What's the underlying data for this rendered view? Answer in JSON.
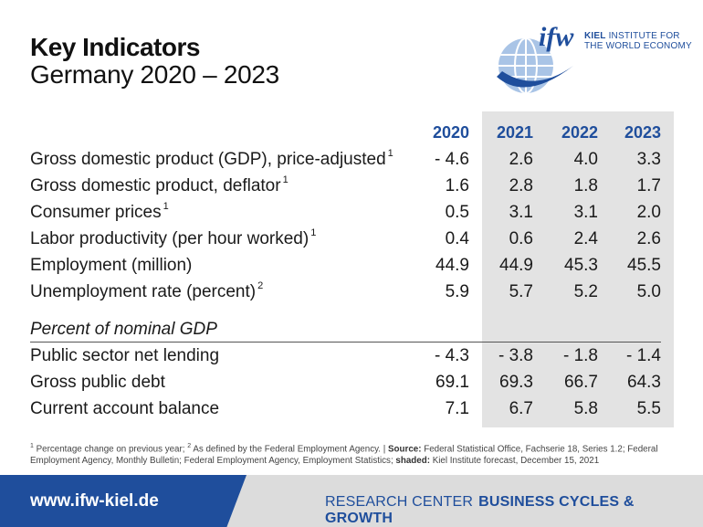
{
  "header": {
    "title": "Key Indicators",
    "subtitle": "Germany 2020 – 2023"
  },
  "logo": {
    "mark": "ifw",
    "line1_bold": "KIEL",
    "line1_rest": "INSTITUTE FOR",
    "line2": "THE WORLD ECONOMY"
  },
  "table": {
    "years": [
      "2020",
      "2021",
      "2022",
      "2023"
    ],
    "rows": [
      {
        "label": "Gross domestic product (GDP), price-adjusted",
        "note": "1",
        "values": [
          "- 4.6",
          "2.6",
          "4.0",
          "3.3"
        ]
      },
      {
        "label": "Gross domestic product, deflator",
        "note": "1",
        "values": [
          "1.6",
          "2.8",
          "1.8",
          "1.7"
        ]
      },
      {
        "label": "Consumer prices",
        "note": "1",
        "values": [
          "0.5",
          "3.1",
          "3.1",
          "2.0"
        ]
      },
      {
        "label": "Labor productivity (per hour worked)",
        "note": "1",
        "values": [
          "0.4",
          "0.6",
          "2.4",
          "2.6"
        ]
      },
      {
        "label": "Employment (million)",
        "note": "",
        "values": [
          "44.9",
          "44.9",
          "45.3",
          "45.5"
        ]
      },
      {
        "label": "Unemployment rate (percent)",
        "note": "2",
        "values": [
          "5.9",
          "5.7",
          "5.2",
          "5.0"
        ]
      }
    ],
    "section_label": "Percent of nominal GDP",
    "rows2": [
      {
        "label": "Public sector net lending",
        "values": [
          "- 4.3",
          "- 3.8",
          "- 1.8",
          "- 1.4"
        ]
      },
      {
        "label": "Gross public debt",
        "values": [
          "69.1",
          "69.3",
          "66.7",
          "64.3"
        ]
      },
      {
        "label": "Current account balance",
        "values": [
          "7.1",
          "6.7",
          "5.8",
          "5.5"
        ]
      }
    ]
  },
  "footnote": {
    "n1": "1",
    "t1": "Percentage change on previous year;",
    "n2": "2",
    "t2": "As defined by the Federal Employment Agency. |",
    "source_label": "Source:",
    "source_text": "Federal Statistical Office, Fachserie 18, Series 1.2; Federal Employment Agency, Monthly Bulletin; Federal Employment Agency, Employment Statistics;",
    "shaded_label": "shaded:",
    "shaded_text": "Kiel Institute forecast, December 15, 2021"
  },
  "footer": {
    "url": "www.ifw-kiel.de",
    "research_center": "RESEARCH CENTER",
    "area": "BUSINESS CYCLES & GROWTH"
  },
  "colors": {
    "brand_blue": "#1f4e9c",
    "shade_grey": "#e3e3e3",
    "footer_grey": "#dcdcdc"
  }
}
